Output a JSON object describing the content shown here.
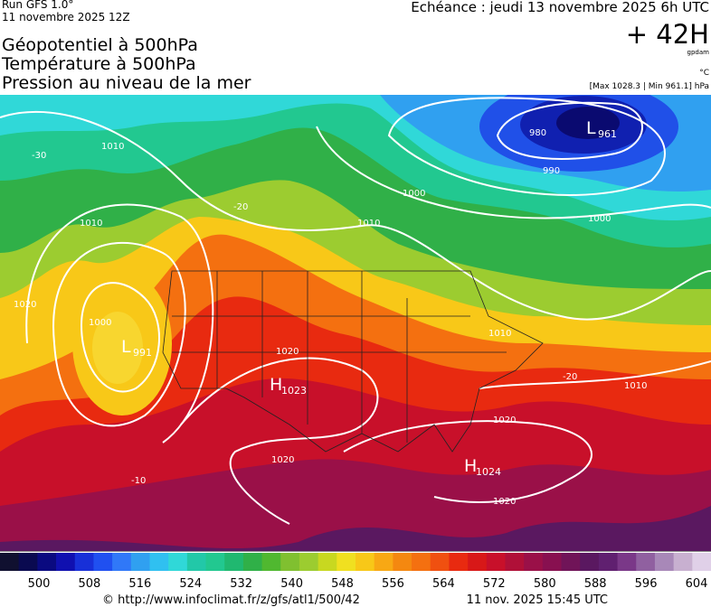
{
  "header": {
    "run": "Run GFS 1.0°",
    "date": "11 novembre 2025 12Z",
    "titles": [
      "Géopotentiel à 500hPa",
      "Température à 500hPa",
      "Pression au niveau de la mer"
    ],
    "echeance": "Echéance : jeudi 13 novembre 2025 6h UTC",
    "lead": "+ 42H",
    "unit_gp": "gpdam",
    "unit_t": "°C",
    "pressure_range": "[Max 1028.3 | Min 961.1] hPa"
  },
  "map": {
    "centers": [
      {
        "letter": "L",
        "value": "961"
      },
      {
        "letter": "L",
        "value": "991"
      },
      {
        "letter": "H",
        "value": "1023"
      },
      {
        "letter": "H",
        "value": "1024"
      }
    ],
    "isobar_labels": [
      "980",
      "990",
      "1000",
      "1000",
      "1010",
      "1010",
      "1010",
      "1000",
      "1020",
      "1020",
      "1020",
      "1020",
      "1020",
      "1010",
      "1010",
      "-20",
      "-20",
      "-30",
      "-10"
    ]
  },
  "colorbar": {
    "ticks": [
      500,
      508,
      516,
      524,
      532,
      540,
      548,
      556,
      564,
      572,
      580,
      588,
      596,
      604
    ]
  },
  "footer": {
    "url": "© http://www.infoclimat.fr/z/gfs/atl1/500/42",
    "timestamp": "11 nov. 2025 15:45 UTC"
  }
}
